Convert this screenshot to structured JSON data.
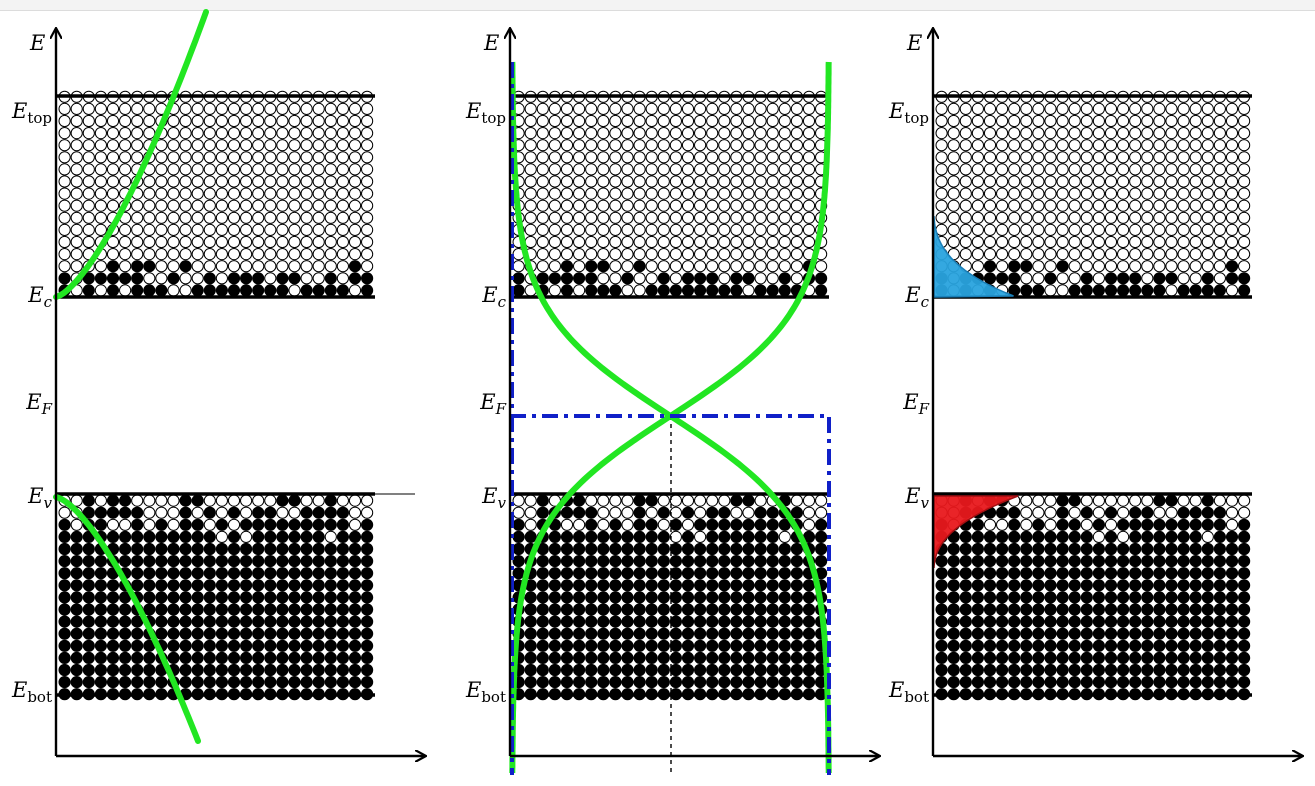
{
  "colors": {
    "occupied_state": "#000000",
    "empty_state": "#ffffff",
    "fermi_curve": "#22e622",
    "step_function": "#1020c8",
    "electron_distribution": "#29a3de",
    "hole_distribution": "#e8181c",
    "axes": "#000000"
  },
  "panels": [
    {
      "name": "density-of-states",
      "axis_label": "E",
      "labels": [
        {
          "key": "top",
          "main": "E",
          "sub": "top"
        },
        {
          "key": "c",
          "main": "E",
          "sub": "c"
        },
        {
          "key": "F",
          "main": "E",
          "sub": "F"
        },
        {
          "key": "v",
          "main": "E",
          "sub": "v"
        },
        {
          "key": "bot",
          "main": "E",
          "sub": "bot"
        }
      ]
    },
    {
      "name": "fermi-dirac-distribution",
      "axis_label": "E",
      "labels": [
        {
          "key": "top",
          "main": "E",
          "sub": "top"
        },
        {
          "key": "c",
          "main": "E",
          "sub": "c"
        },
        {
          "key": "F",
          "main": "E",
          "sub": "F"
        },
        {
          "key": "v",
          "main": "E",
          "sub": "v"
        },
        {
          "key": "bot",
          "main": "E",
          "sub": "bot"
        }
      ]
    },
    {
      "name": "carrier-concentration",
      "axis_label": "E",
      "labels": [
        {
          "key": "top",
          "main": "E",
          "sub": "top"
        },
        {
          "key": "c",
          "main": "E",
          "sub": "c"
        },
        {
          "key": "F",
          "main": "E",
          "sub": "F"
        },
        {
          "key": "v",
          "main": "E",
          "sub": "v"
        },
        {
          "key": "bot",
          "main": "E",
          "sub": "bot"
        }
      ]
    }
  ]
}
